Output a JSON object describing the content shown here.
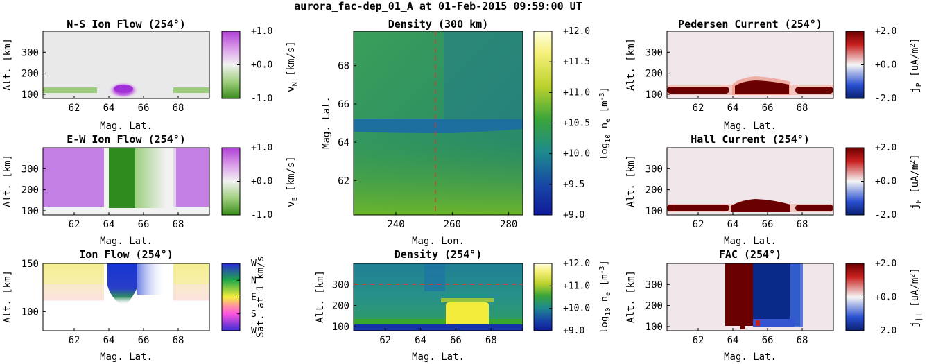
{
  "suptitle": "aurora_fac-dep_01_A at 01-Feb-2015 09:59:00 UT",
  "colors": {
    "pink": "#f1e6ea",
    "dark_red": "#6b0000",
    "dark_blue": "#0a2a8a",
    "green": "#2e8b1e",
    "magenta": "#c77ee6",
    "yellow": "#f3ed84",
    "density_teal": "#2a8a8a",
    "ref_line": "#d43a2a"
  },
  "chart_data": [
    {
      "id": "ns",
      "type": "heatmap",
      "title": "N-S Ion Flow (254°)",
      "xlabel": "Mag. Lat.",
      "ylabel": "Alt. [km]",
      "xlim": [
        60.2,
        69.8
      ],
      "ylim": [
        80,
        400
      ],
      "xticks": [
        "62",
        "64",
        "66",
        "68"
      ],
      "yticks": [
        "100",
        "200",
        "300"
      ],
      "colorbar": {
        "label_main": "v",
        "label_sub": "N",
        "label_rest": " [km/s]",
        "ticks": [
          "+1.0",
          "+0.0",
          "-1.0"
        ],
        "range": [
          -1.0,
          1.0
        ]
      }
    },
    {
      "id": "ew",
      "type": "heatmap",
      "title": "E-W Ion Flow (254°)",
      "xlabel": "Mag. Lat.",
      "ylabel": "Alt. [km]",
      "xlim": [
        60.2,
        69.8
      ],
      "ylim": [
        80,
        400
      ],
      "xticks": [
        "62",
        "64",
        "66",
        "68"
      ],
      "yticks": [
        "100",
        "200",
        "300"
      ],
      "colorbar": {
        "label_main": "v",
        "label_sub": "E",
        "label_rest": " [km/s]",
        "ticks": [
          "+1.0",
          "+0.0",
          "-1.0"
        ],
        "range": [
          -1.0,
          1.0
        ]
      }
    },
    {
      "id": "ion",
      "type": "heatmap",
      "title": "Ion Flow (254°)",
      "xlabel": "Mag. Lat.",
      "ylabel": "Alt. [km]",
      "xlim": [
        60.2,
        69.8
      ],
      "ylim": [
        80,
        150
      ],
      "xticks": [
        "62",
        "64",
        "66",
        "68"
      ],
      "yticks": [
        "100",
        "150"
      ],
      "colorbar": {
        "label_main": "Sat. at 1 km/s",
        "label_sub": "",
        "label_rest": "",
        "ticks": [
          "W",
          "N",
          "E",
          "S",
          "W"
        ]
      }
    },
    {
      "id": "dens300",
      "type": "heatmap",
      "title": "Density (300 km)",
      "xlabel": "Mag. Lon.",
      "ylabel": "Mag. Lat.",
      "xlim": [
        225,
        285
      ],
      "ylim": [
        60.2,
        69.8
      ],
      "xticks": [
        "240",
        "260",
        "280"
      ],
      "yticks": [
        "62",
        "64",
        "66",
        "68"
      ],
      "reference_line": {
        "axis": "x",
        "value": 254
      },
      "colorbar": {
        "label_main": "log",
        "label_sub": "10",
        "label_rest": " n",
        "label_sub2": "e",
        "label_rest2": " [m",
        "label_sup": "-3",
        "label_end": "]",
        "ticks": [
          "+12.0",
          "+11.5",
          "+11.0",
          "+10.5",
          "+10.0",
          "+9.5",
          "+9.0"
        ],
        "range": [
          9.0,
          12.0
        ]
      }
    },
    {
      "id": "dens254",
      "type": "heatmap",
      "title": "Density (254°)",
      "xlabel": "Mag. Lat.",
      "ylabel": "Alt. [km]",
      "xlim": [
        60.2,
        69.8
      ],
      "ylim": [
        80,
        400
      ],
      "xticks": [
        "62",
        "64",
        "66",
        "68"
      ],
      "yticks": [
        "100",
        "200",
        "300"
      ],
      "reference_line": {
        "axis": "y",
        "value": 300
      },
      "colorbar": {
        "label_main": "log",
        "label_sub": "10",
        "label_rest": " n",
        "label_sub2": "e",
        "label_rest2": " [m",
        "label_sup": "-3",
        "label_end": "]",
        "ticks": [
          "+12.0",
          "+11.0",
          "+10.0",
          "+9.0"
        ],
        "range": [
          9.0,
          12.0
        ]
      }
    },
    {
      "id": "ped",
      "type": "heatmap",
      "title": "Pedersen Current (254°)",
      "xlabel": "Mag. Lat.",
      "ylabel": "Alt. [km]",
      "xlim": [
        60.2,
        69.8
      ],
      "ylim": [
        80,
        400
      ],
      "xticks": [
        "62",
        "64",
        "66",
        "68"
      ],
      "yticks": [
        "100",
        "200",
        "300"
      ],
      "colorbar": {
        "label_main": "j",
        "label_sub": "P",
        "label_rest": " [uA/m",
        "label_sup": "2",
        "label_end": "]",
        "ticks": [
          "+2.0",
          "+0.0",
          "-2.0"
        ],
        "range": [
          -2.0,
          2.0
        ]
      }
    },
    {
      "id": "hall",
      "type": "heatmap",
      "title": "Hall Current (254°)",
      "xlabel": "Mag. Lat.",
      "ylabel": "Alt. [km]",
      "xlim": [
        60.2,
        69.8
      ],
      "ylim": [
        80,
        400
      ],
      "xticks": [
        "62",
        "64",
        "66",
        "68"
      ],
      "yticks": [
        "100",
        "200",
        "300"
      ],
      "colorbar": {
        "label_main": "j",
        "label_sub": "H",
        "label_rest": " [uA/m",
        "label_sup": "2",
        "label_end": "]",
        "ticks": [
          "+2.0",
          "+0.0",
          "-2.0"
        ],
        "range": [
          -2.0,
          2.0
        ]
      }
    },
    {
      "id": "fac",
      "type": "heatmap",
      "title": "FAC (254°)",
      "xlabel": "Mag. Lat.",
      "ylabel": "Alt. [km]",
      "xlim": [
        60.2,
        69.8
      ],
      "ylim": [
        80,
        400
      ],
      "xticks": [
        "62",
        "64",
        "66",
        "68"
      ],
      "yticks": [
        "100",
        "200",
        "300"
      ],
      "colorbar": {
        "label_main": "j",
        "label_sub": "||",
        "label_rest": " [uA/m",
        "label_sup": "2",
        "label_end": "]",
        "ticks": [
          "+2.0",
          "+0.0",
          "-2.0"
        ],
        "range": [
          -2.0,
          2.0
        ]
      }
    }
  ]
}
